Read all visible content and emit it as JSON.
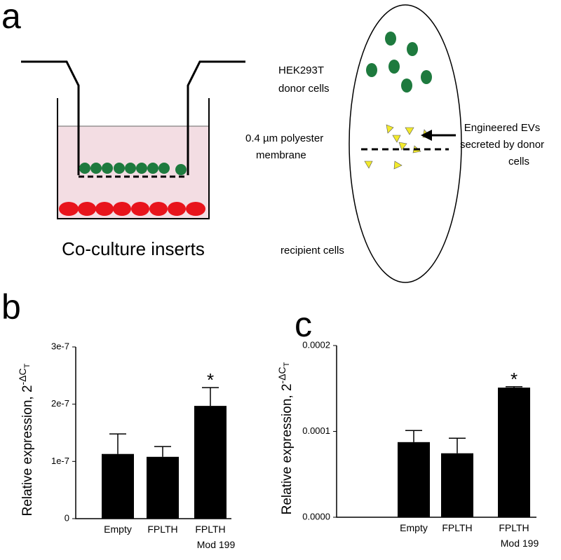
{
  "diagram": {
    "panel_a": "a",
    "panel_b": "b",
    "panel_c": "c",
    "insert_caption": "Co-culture inserts",
    "donor_line1": "HEK293T",
    "donor_line2": "donor cells",
    "membrane_line1": "0.4 µm polyester",
    "membrane_line2": "membrane",
    "recipient": "recipient cells",
    "evs_line1": "Engineered EVs",
    "evs_line2": "secreted by donor",
    "evs_line3": "cells"
  },
  "chart_data": [
    {
      "type": "bar",
      "ylabel": "Relative expression, 2",
      "ylabel_exponent": "-ΔC",
      "ylabel_exponent_subscript": "T",
      "categories": [
        "Empty",
        "FPLTH",
        "FPLTH\nMod 199"
      ],
      "series": [
        {
          "color": "#000000",
          "values": [
            1.13e-07,
            1.08e-07,
            1.97e-07
          ],
          "errors": [
            3.5e-08,
            1.8e-08,
            3.2e-08
          ]
        }
      ],
      "annotation": "*",
      "ylim": [
        0,
        3e-07
      ],
      "yticks": [
        0,
        {
          "value": 1e-07,
          "label": "1e-7"
        },
        {
          "value": 2e-07,
          "label": "2e-7"
        },
        {
          "value": 3e-07,
          "label": "3e-7"
        }
      ]
    },
    {
      "type": "bar",
      "ylabel": "Relative expression, 2",
      "ylabel_exponent": "-ΔC",
      "ylabel_exponent_subscript": "T",
      "categories": [
        "Empty",
        "FPLTH",
        "FPLTH\nMod 199"
      ],
      "series": [
        {
          "color": "#000000",
          "values": [
            8.75e-05,
            7.45e-05,
            0.000151
          ],
          "errors": [
            1.35e-05,
            1.75e-05,
            1e-06
          ]
        }
      ],
      "annotation": "*",
      "ylim": [
        0,
        0.0002
      ],
      "yticks": [
        {
          "value": 0,
          "label": "0.0000"
        },
        {
          "value": 0.0001,
          "label": "0.0001"
        },
        {
          "value": 0.0002,
          "label": "0.0002"
        }
      ]
    }
  ]
}
